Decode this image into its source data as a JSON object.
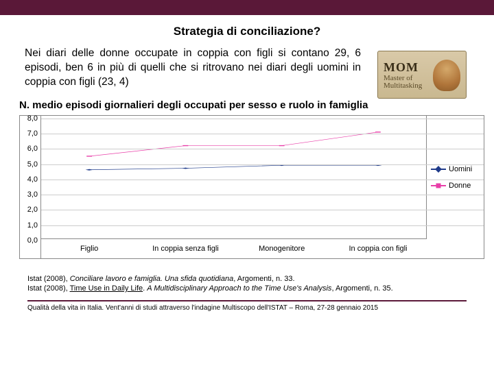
{
  "header": {
    "title": "Strategia di conciliazione?"
  },
  "body": {
    "paragraph": "Nei diari delle donne occupate in coppia con figli si contano 29, 6 episodi, ben 6 in più di quelli che si ritrovano nei diari degli uomini in coppia con figli (23, 4)"
  },
  "badge": {
    "line1": "MOM",
    "line2": "Master of",
    "line3": "Multitasking"
  },
  "chart": {
    "title": "N. medio episodi giornalieri degli occupati per sesso e ruolo in famiglia",
    "type": "line",
    "categories": [
      "Figlio",
      "In coppia senza figli",
      "Monogenitore",
      "In coppia con figli"
    ],
    "series": [
      {
        "name": "Uomini",
        "label": "Uomini",
        "color": "#1f3b8a",
        "marker": "diamond",
        "values": [
          4.6,
          4.7,
          4.9,
          4.9
        ]
      },
      {
        "name": "Donne",
        "label": "Donne",
        "color": "#e83ea8",
        "marker": "square",
        "values": [
          5.5,
          6.2,
          6.2,
          7.1
        ]
      }
    ],
    "ylim": [
      0,
      8
    ],
    "ytick_step": 1,
    "y_decimals": 1,
    "grid_color": "#cccccc",
    "axis_color": "#888888",
    "background_color": "#ffffff",
    "line_width": 2,
    "marker_size": 7,
    "label_fontsize": 11,
    "legend_position": "right"
  },
  "references": {
    "line1_a": "Istat (2008), ",
    "line1_b": "Conciliare lavoro e famiglia. Una sfida quotidiana",
    "line1_c": ", Argomenti, n. 33.",
    "line2_a": "Istat (2008), ",
    "line2_b": "Time Use in Daily Life",
    "line2_c": ". ",
    "line2_d": "A Multidisciplinary Approach to the Time Use's Analysis",
    "line2_e": ", Argomenti, n. 35."
  },
  "footer": {
    "text": "Qualità della vita in Italia. Vent'anni di studi attraverso l'indagine Multiscopo dell'ISTAT – Roma, 27-28 gennaio 2015"
  }
}
